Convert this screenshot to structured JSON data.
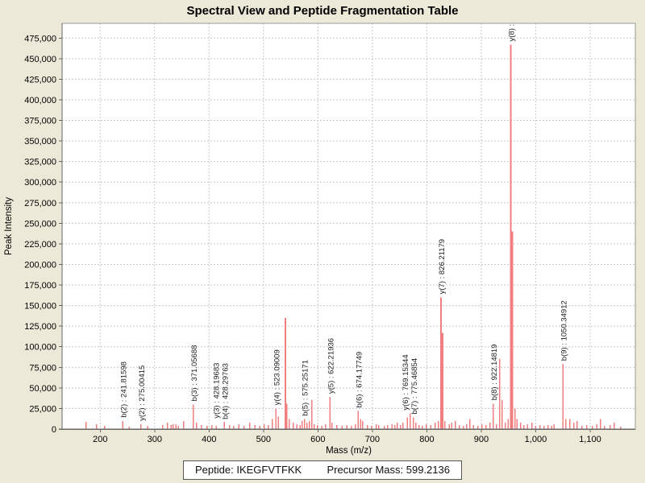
{
  "window": {
    "background": "#ece9d8",
    "plot_background": "#ffffff",
    "grid_color": "#c9c9c9",
    "border_color": "#999999",
    "axis_color": "#666666"
  },
  "chart_data": {
    "type": "bar",
    "subtype": "mass-spectrum-stick-plot",
    "title": "Spectral View and Peptide Fragmentation Table",
    "xlabel": "Mass (m/z)",
    "ylabel": "Peak Intensity",
    "xlim": [
      130,
      1183
    ],
    "ylim": [
      0,
      493000
    ],
    "grid": "dashed",
    "legend": "none",
    "peak_color": "#f08080",
    "x_ticks": [
      {
        "v": 200,
        "label": "200"
      },
      {
        "v": 300,
        "label": "300"
      },
      {
        "v": 400,
        "label": "400"
      },
      {
        "v": 500,
        "label": "500"
      },
      {
        "v": 600,
        "label": "600"
      },
      {
        "v": 700,
        "label": "700"
      },
      {
        "v": 800,
        "label": "800"
      },
      {
        "v": 900,
        "label": "900"
      },
      {
        "v": 1000,
        "label": "1,000"
      },
      {
        "v": 1100,
        "label": "1,100"
      }
    ],
    "y_ticks": [
      {
        "v": 0,
        "label": "0"
      },
      {
        "v": 25000,
        "label": "25,000"
      },
      {
        "v": 50000,
        "label": "50,000"
      },
      {
        "v": 75000,
        "label": "75,000"
      },
      {
        "v": 100000,
        "label": "100,000"
      },
      {
        "v": 125000,
        "label": "125,000"
      },
      {
        "v": 150000,
        "label": "150,000"
      },
      {
        "v": 175000,
        "label": "175,000"
      },
      {
        "v": 200000,
        "label": "200,000"
      },
      {
        "v": 225000,
        "label": "225,000"
      },
      {
        "v": 250000,
        "label": "250,000"
      },
      {
        "v": 275000,
        "label": "275,000"
      },
      {
        "v": 300000,
        "label": "300,000"
      },
      {
        "v": 325000,
        "label": "325,000"
      },
      {
        "v": 350000,
        "label": "350,000"
      },
      {
        "v": 375000,
        "label": "375,000"
      },
      {
        "v": 400000,
        "label": "400,000"
      },
      {
        "v": 425000,
        "label": "425,000"
      },
      {
        "v": 450000,
        "label": "450,000"
      },
      {
        "v": 475000,
        "label": "475,000"
      }
    ],
    "annotations": [
      {
        "label": "b(2) : 241.81598",
        "mz": 241.81598,
        "intensity": 10000
      },
      {
        "label": "y(2) : 275.00415",
        "mz": 275.00415,
        "intensity": 6000
      },
      {
        "label": "b(3) : 371.05688",
        "mz": 371.05688,
        "intensity": 30000
      },
      {
        "label": "y(3) : 428.19683",
        "mz": 428.19683,
        "intensity": 9000
      },
      {
        "label": "b(4) : 428.29763",
        "mz": 428.29763,
        "intensity": 8000
      },
      {
        "label": "y(4) : 523.09009",
        "mz": 523.09009,
        "intensity": 25000
      },
      {
        "label": "b(5) : 575.25171",
        "mz": 575.25171,
        "intensity": 12000
      },
      {
        "label": "y(5) : 622.21936",
        "mz": 622.21936,
        "intensity": 39000
      },
      {
        "label": "b(6) : 674.17749",
        "mz": 674.17749,
        "intensity": 22000
      },
      {
        "label": "y(6) : 769.15344",
        "mz": 769.15344,
        "intensity": 19000
      },
      {
        "label": "b(7) : 775.46854",
        "mz": 775.46854,
        "intensity": 14000
      },
      {
        "label": "y(7) : 826.21179",
        "mz": 826.21179,
        "intensity": 160000
      },
      {
        "label": "b(8) : 922.14819",
        "mz": 922.14819,
        "intensity": 31000
      },
      {
        "label": "y(8) :",
        "mz": 954.3,
        "intensity": 467000
      },
      {
        "label": "b(9) : 1050.34912",
        "mz": 1050.34912,
        "intensity": 79000
      }
    ],
    "peaks": [
      [
        174,
        9000
      ],
      [
        193,
        6000
      ],
      [
        208,
        4000
      ],
      [
        241.81598,
        10000
      ],
      [
        253,
        3000
      ],
      [
        275.00415,
        6000
      ],
      [
        287,
        4000
      ],
      [
        315,
        5000
      ],
      [
        324,
        8000
      ],
      [
        330,
        5000
      ],
      [
        334,
        6000
      ],
      [
        339,
        6000
      ],
      [
        344,
        4000
      ],
      [
        353,
        10000
      ],
      [
        371.05688,
        30000
      ],
      [
        377,
        8000
      ],
      [
        386,
        5000
      ],
      [
        396,
        4000
      ],
      [
        405,
        5000
      ],
      [
        413,
        4000
      ],
      [
        428.19683,
        9000
      ],
      [
        428.29763,
        8000
      ],
      [
        438,
        5000
      ],
      [
        445,
        4000
      ],
      [
        455,
        6000
      ],
      [
        464,
        4000
      ],
      [
        475,
        8000
      ],
      [
        484,
        5000
      ],
      [
        493,
        4000
      ],
      [
        501,
        6000
      ],
      [
        509,
        5000
      ],
      [
        516,
        12000
      ],
      [
        523.09009,
        25000
      ],
      [
        527,
        15000
      ],
      [
        540,
        135000
      ],
      [
        543,
        31000
      ],
      [
        547,
        12000
      ],
      [
        555,
        8000
      ],
      [
        561,
        6000
      ],
      [
        567,
        5000
      ],
      [
        571,
        10000
      ],
      [
        575.25171,
        12000
      ],
      [
        580,
        8000
      ],
      [
        584,
        10000
      ],
      [
        589,
        35000
      ],
      [
        593,
        6000
      ],
      [
        599,
        5000
      ],
      [
        607,
        4000
      ],
      [
        614,
        6000
      ],
      [
        622.21936,
        39000
      ],
      [
        626,
        8000
      ],
      [
        635,
        5000
      ],
      [
        644,
        4000
      ],
      [
        653,
        5000
      ],
      [
        661,
        4000
      ],
      [
        669,
        6000
      ],
      [
        674.17749,
        22000
      ],
      [
        678,
        12000
      ],
      [
        682,
        10000
      ],
      [
        691,
        5000
      ],
      [
        698,
        4000
      ],
      [
        707,
        6000
      ],
      [
        712,
        5000
      ],
      [
        722,
        4000
      ],
      [
        728,
        5000
      ],
      [
        736,
        6000
      ],
      [
        741,
        5000
      ],
      [
        746,
        8000
      ],
      [
        752,
        5000
      ],
      [
        756,
        8000
      ],
      [
        764,
        14000
      ],
      [
        769.15344,
        19000
      ],
      [
        775.46854,
        14000
      ],
      [
        780,
        8000
      ],
      [
        786,
        5000
      ],
      [
        792,
        4000
      ],
      [
        799,
        6000
      ],
      [
        807,
        5000
      ],
      [
        815,
        8000
      ],
      [
        821,
        10000
      ],
      [
        826.21179,
        160000
      ],
      [
        829,
        117000
      ],
      [
        833,
        10000
      ],
      [
        841,
        6000
      ],
      [
        846,
        8000
      ],
      [
        852,
        10000
      ],
      [
        860,
        5000
      ],
      [
        867,
        4000
      ],
      [
        873,
        6000
      ],
      [
        879,
        12000
      ],
      [
        886,
        5000
      ],
      [
        894,
        4000
      ],
      [
        901,
        6000
      ],
      [
        909,
        5000
      ],
      [
        916,
        8000
      ],
      [
        922.14819,
        31000
      ],
      [
        928,
        6000
      ],
      [
        934,
        85000
      ],
      [
        938,
        35000
      ],
      [
        944,
        8000
      ],
      [
        949,
        12000
      ],
      [
        954.3,
        467000
      ],
      [
        957.5,
        240000
      ],
      [
        962,
        25000
      ],
      [
        966,
        12000
      ],
      [
        972,
        8000
      ],
      [
        978,
        5000
      ],
      [
        985,
        6000
      ],
      [
        993,
        8000
      ],
      [
        1000,
        4000
      ],
      [
        1008,
        5000
      ],
      [
        1015,
        4000
      ],
      [
        1023,
        5000
      ],
      [
        1029,
        4000
      ],
      [
        1034,
        6000
      ],
      [
        1050.34912,
        79000
      ],
      [
        1055,
        12000
      ],
      [
        1063,
        12000
      ],
      [
        1070,
        8000
      ],
      [
        1076,
        10000
      ],
      [
        1085,
        4000
      ],
      [
        1094,
        5000
      ],
      [
        1104,
        4000
      ],
      [
        1112,
        6000
      ],
      [
        1119,
        12000
      ],
      [
        1126,
        4000
      ],
      [
        1137,
        5000
      ],
      [
        1144,
        8000
      ],
      [
        1156,
        3000
      ]
    ]
  },
  "footer": {
    "peptide_label": "Peptide:",
    "peptide_value": "IKEGFVTFKK",
    "precursor_label": "Precursor Mass:",
    "precursor_value": "599.2136"
  }
}
